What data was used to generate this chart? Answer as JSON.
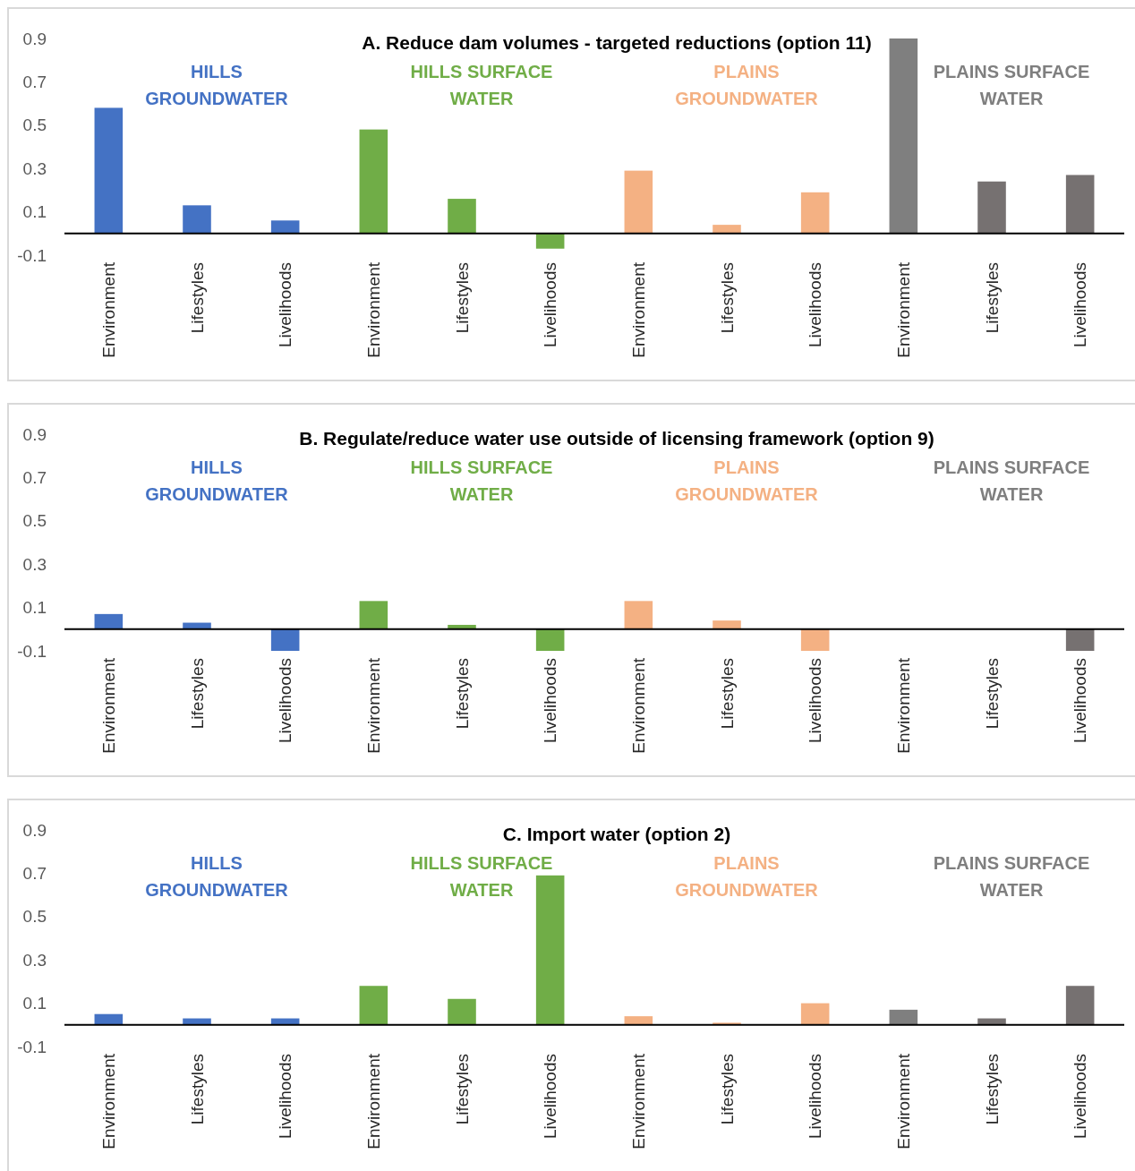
{
  "chart_data": [
    {
      "type": "bar",
      "title": "A. Reduce dam volumes - targeted reductions (option 11)",
      "categories": [
        "Environment",
        "Lifestyles",
        "Livelihoods",
        "Environment",
        "Lifestyles",
        "Livelihoods",
        "Environment",
        "Lifestyles",
        "Livelihoods",
        "Environment",
        "Lifestyles",
        "Livelihoods"
      ],
      "values": [
        0.58,
        0.13,
        0.06,
        0.48,
        0.16,
        -0.07,
        0.29,
        0.04,
        0.19,
        0.9,
        0.24,
        0.27
      ],
      "colors": [
        "#4472c4",
        "#4472c4",
        "#4472c4",
        "#70ad47",
        "#70ad47",
        "#70ad47",
        "#f4b183",
        "#f4b183",
        "#f4b183",
        "#7f7f7f",
        "#767171",
        "#767171"
      ],
      "ylim": [
        -0.1,
        0.9
      ],
      "yticks": [
        -0.1,
        0.1,
        0.3,
        0.5,
        0.7,
        0.9
      ],
      "annotations": [
        "HILLS\nGROUNDWATER",
        "HILLS SURFACE\nWATER",
        "PLAINS\nGROUNDWATER",
        "PLAINS SURFACE\nWATER"
      ]
    },
    {
      "type": "bar",
      "title": "B. Regulate/reduce water use outside of licensing framework (option 9)",
      "categories": [
        "Environment",
        "Lifestyles",
        "Livelihoods",
        "Environment",
        "Lifestyles",
        "Livelihoods",
        "Environment",
        "Lifestyles",
        "Livelihoods",
        "Environment",
        "Lifestyles",
        "Livelihoods"
      ],
      "values": [
        0.07,
        0.03,
        -0.1,
        0.13,
        0.02,
        -0.1,
        0.13,
        0.04,
        -0.1,
        0,
        0,
        -0.1
      ],
      "colors": [
        "#4472c4",
        "#4472c4",
        "#4472c4",
        "#70ad47",
        "#70ad47",
        "#70ad47",
        "#f4b183",
        "#f4b183",
        "#f4b183",
        "#7f7f7f",
        "#767171",
        "#767171"
      ],
      "ylim": [
        -0.1,
        0.9
      ],
      "yticks": [
        -0.1,
        0.1,
        0.3,
        0.5,
        0.7,
        0.9
      ],
      "annotations": [
        "HILLS\nGROUNDWATER",
        "HILLS SURFACE\nWATER",
        "PLAINS\nGROUNDWATER",
        "PLAINS SURFACE\nWATER"
      ]
    },
    {
      "type": "bar",
      "title": "C. Import water (option 2)",
      "categories": [
        "Environment",
        "Lifestyles",
        "Livelihoods",
        "Environment",
        "Lifestyles",
        "Livelihoods",
        "Environment",
        "Lifestyles",
        "Livelihoods",
        "Environment",
        "Lifestyles",
        "Livelihoods"
      ],
      "values": [
        0.05,
        0.03,
        0.03,
        0.18,
        0.12,
        0.69,
        0.04,
        0.01,
        0.1,
        0.07,
        0.03,
        0.18
      ],
      "colors": [
        "#4472c4",
        "#4472c4",
        "#4472c4",
        "#70ad47",
        "#70ad47",
        "#70ad47",
        "#f4b183",
        "#f4b183",
        "#f4b183",
        "#7f7f7f",
        "#767171",
        "#767171"
      ],
      "ylim": [
        -0.1,
        0.9
      ],
      "yticks": [
        -0.1,
        0.1,
        0.3,
        0.5,
        0.7,
        0.9
      ],
      "annotations": [
        "HILLS\nGROUNDWATER",
        "HILLS SURFACE\nWATER",
        "PLAINS\nGROUNDWATER",
        "PLAINS SURFACE\nWATER"
      ]
    }
  ]
}
